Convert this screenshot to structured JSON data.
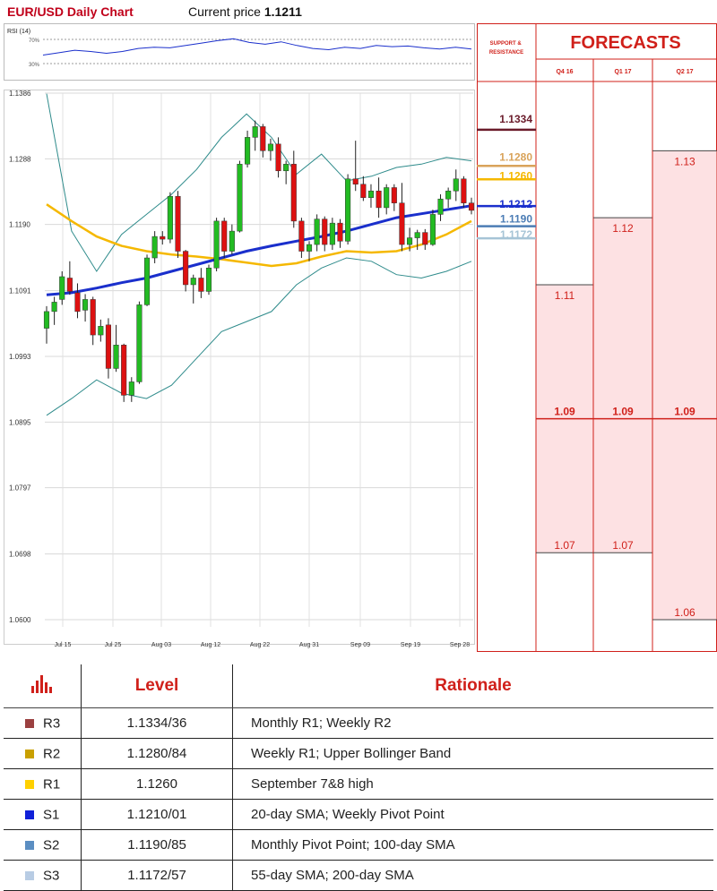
{
  "header": {
    "title": "EUR/USD Daily Chart",
    "price_label": "Current price",
    "price_value": "1.1211"
  },
  "chart_data": {
    "type": "candlestick",
    "title": "EUR/USD Daily Chart",
    "ylim": [
      1.06,
      1.1386
    ],
    "y_ticks": [
      "1.1386",
      "1.1288",
      "1.1190",
      "1.1091",
      "1.0993",
      "1.0895",
      "1.0797",
      "1.0698",
      "1.0600"
    ],
    "x_ticks": [
      "Jul 15",
      "Jul 25",
      "Aug 03",
      "Aug 12",
      "Aug 22",
      "Aug 31",
      "Sep 09",
      "Sep 19",
      "Sep 28"
    ],
    "candles": [
      [
        1.1035,
        1.1068,
        1.1012,
        1.106
      ],
      [
        1.106,
        1.1082,
        1.104,
        1.1074
      ],
      [
        1.1078,
        1.112,
        1.107,
        1.1112
      ],
      [
        1.111,
        1.1135,
        1.1085,
        1.109
      ],
      [
        1.1088,
        1.1102,
        1.105,
        1.106
      ],
      [
        1.1062,
        1.1086,
        1.1045,
        1.1078
      ],
      [
        1.1078,
        1.1082,
        1.101,
        1.1025
      ],
      [
        1.1025,
        1.1048,
        1.1015,
        1.1038
      ],
      [
        1.104,
        1.105,
        1.096,
        1.0975
      ],
      [
        1.0975,
        1.104,
        1.097,
        1.101
      ],
      [
        1.101,
        1.1012,
        1.0925,
        1.0935
      ],
      [
        1.0935,
        1.0962,
        1.0925,
        1.0955
      ],
      [
        1.0955,
        1.1075,
        1.0952,
        1.107
      ],
      [
        1.107,
        1.1145,
        1.1068,
        1.114
      ],
      [
        1.114,
        1.118,
        1.1132,
        1.1172
      ],
      [
        1.1172,
        1.118,
        1.116,
        1.1168
      ],
      [
        1.1168,
        1.1238,
        1.1162,
        1.1232
      ],
      [
        1.1232,
        1.124,
        1.114,
        1.115
      ],
      [
        1.115,
        1.1152,
        1.109,
        1.11
      ],
      [
        1.11,
        1.1115,
        1.1072,
        1.111
      ],
      [
        1.111,
        1.1125,
        1.108,
        1.109
      ],
      [
        1.109,
        1.113,
        1.1085,
        1.1125
      ],
      [
        1.1125,
        1.12,
        1.112,
        1.1195
      ],
      [
        1.1195,
        1.12,
        1.114,
        1.115
      ],
      [
        1.115,
        1.119,
        1.1145,
        1.118
      ],
      [
        1.118,
        1.1285,
        1.1178,
        1.128
      ],
      [
        1.128,
        1.133,
        1.1275,
        1.132
      ],
      [
        1.132,
        1.1345,
        1.13,
        1.1336
      ],
      [
        1.1336,
        1.134,
        1.129,
        1.13
      ],
      [
        1.13,
        1.1318,
        1.1285,
        1.131
      ],
      [
        1.131,
        1.132,
        1.126,
        1.127
      ],
      [
        1.127,
        1.1285,
        1.125,
        1.128
      ],
      [
        1.128,
        1.13,
        1.1185,
        1.1195
      ],
      [
        1.1195,
        1.12,
        1.114,
        1.115
      ],
      [
        1.115,
        1.1165,
        1.1135,
        1.116
      ],
      [
        1.116,
        1.1205,
        1.115,
        1.1198
      ],
      [
        1.1198,
        1.1202,
        1.115,
        1.116
      ],
      [
        1.116,
        1.12,
        1.1152,
        1.1192
      ],
      [
        1.1192,
        1.1198,
        1.1155,
        1.1165
      ],
      [
        1.1165,
        1.1265,
        1.116,
        1.1258
      ],
      [
        1.1258,
        1.1315,
        1.124,
        1.125
      ],
      [
        1.125,
        1.1262,
        1.1225,
        1.123
      ],
      [
        1.123,
        1.125,
        1.1215,
        1.124
      ],
      [
        1.124,
        1.126,
        1.12,
        1.1215
      ],
      [
        1.1215,
        1.125,
        1.1205,
        1.1245
      ],
      [
        1.1245,
        1.125,
        1.121,
        1.1222
      ],
      [
        1.1222,
        1.1252,
        1.115,
        1.116
      ],
      [
        1.116,
        1.1185,
        1.115,
        1.117
      ],
      [
        1.117,
        1.1182,
        1.1152,
        1.1178
      ],
      [
        1.1178,
        1.1183,
        1.1152,
        1.116
      ],
      [
        1.116,
        1.1212,
        1.1158,
        1.1205
      ],
      [
        1.1205,
        1.1235,
        1.1195,
        1.1228
      ],
      [
        1.1228,
        1.1245,
        1.1215,
        1.124
      ],
      [
        1.124,
        1.1272,
        1.1225,
        1.1258
      ],
      [
        1.1258,
        1.1262,
        1.1215,
        1.1222
      ],
      [
        1.1222,
        1.123,
        1.1205,
        1.1211
      ]
    ],
    "moving_averages": {
      "blue": [
        1.1085,
        1.1088,
        1.1095,
        1.1103,
        1.111,
        1.112,
        1.113,
        1.114,
        1.115,
        1.1158,
        1.1165,
        1.1172,
        1.118,
        1.119,
        1.12,
        1.1206,
        1.1212,
        1.1218
      ],
      "orange": [
        1.122,
        1.1195,
        1.1172,
        1.1158,
        1.115,
        1.1145,
        1.1142,
        1.1138,
        1.1133,
        1.1128,
        1.1132,
        1.1142,
        1.115,
        1.1148,
        1.115,
        1.116,
        1.1175,
        1.1195
      ],
      "upper_band": [
        1.1385,
        1.118,
        1.112,
        1.1175,
        1.1205,
        1.1235,
        1.1272,
        1.132,
        1.1355,
        1.132,
        1.1265,
        1.1295,
        1.1255,
        1.1262,
        1.1275,
        1.128,
        1.129,
        1.1285
      ],
      "lower_band": [
        1.0905,
        1.093,
        1.0958,
        1.0938,
        1.093,
        1.095,
        1.099,
        1.103,
        1.1045,
        1.106,
        1.11,
        1.1125,
        1.114,
        1.1135,
        1.1115,
        1.111,
        1.112,
        1.1135
      ]
    },
    "rsi": {
      "label": "RSI (14)",
      "levels": [
        "70%",
        "30%"
      ],
      "values": [
        44,
        48,
        52,
        50,
        47,
        50,
        55,
        57,
        56,
        60,
        64,
        68,
        71,
        65,
        62,
        66,
        60,
        55,
        53,
        57,
        55,
        60,
        58,
        59,
        56,
        54,
        57,
        54
      ]
    }
  },
  "support_resistance": {
    "header": "SUPPORT & RESISTANCE",
    "levels": [
      {
        "value": "1.1334",
        "level": 1.1334,
        "color": "#6a1b2a"
      },
      {
        "value": "1.1280",
        "level": 1.128,
        "color": "#d9a35a"
      },
      {
        "value": "1.1260",
        "level": 1.126,
        "color": "#f5b800"
      },
      {
        "value": "1.1212",
        "level": 1.1212,
        "color": "#1a2fcc"
      },
      {
        "value": "1.1190",
        "level": 1.119,
        "color": "#4c7db5"
      },
      {
        "value": "1.1172",
        "level": 1.1172,
        "color": "#a6c4d6"
      }
    ]
  },
  "forecasts": {
    "title": "FORECASTS",
    "columns": [
      {
        "label": "Q4 16",
        "high": "1.11",
        "high_level": 1.11,
        "mid": "1.09",
        "low": "1.07",
        "low_level": 1.07
      },
      {
        "label": "Q1 17",
        "high": "1.12",
        "high_level": 1.12,
        "mid": "1.09",
        "low": "1.07",
        "low_level": 1.07
      },
      {
        "label": "Q2 17",
        "high": "1.13",
        "high_level": 1.13,
        "mid": "1.09",
        "low": "1.06",
        "low_level": 1.06
      }
    ],
    "mid_level": 1.09
  },
  "levels_table": {
    "headers": {
      "level": "Level",
      "rationale": "Rationale"
    },
    "header_icon": "bar-chart-icon",
    "rows": [
      {
        "name": "R3",
        "color": "#9b4040",
        "level": "1.1334/36",
        "rationale": "Monthly R1; Weekly R2"
      },
      {
        "name": "R2",
        "color": "#c9a000",
        "level": "1.1280/84",
        "rationale": "Weekly R1; Upper Bollinger Band"
      },
      {
        "name": "R1",
        "color": "#ffd000",
        "level": "1.1260",
        "rationale": "September 7&8 high"
      },
      {
        "name": "S1",
        "color": "#1020d8",
        "level": "1.1210/01",
        "rationale": "20-day SMA; Weekly Pivot Point"
      },
      {
        "name": "S2",
        "color": "#5b8ec2",
        "level": "1.1190/85",
        "rationale": "Monthly Pivot Point; 100-day SMA"
      },
      {
        "name": "S3",
        "color": "#b8cce4",
        "level": "1.1172/57",
        "rationale": "55-day SMA; 200-day SMA"
      }
    ]
  }
}
